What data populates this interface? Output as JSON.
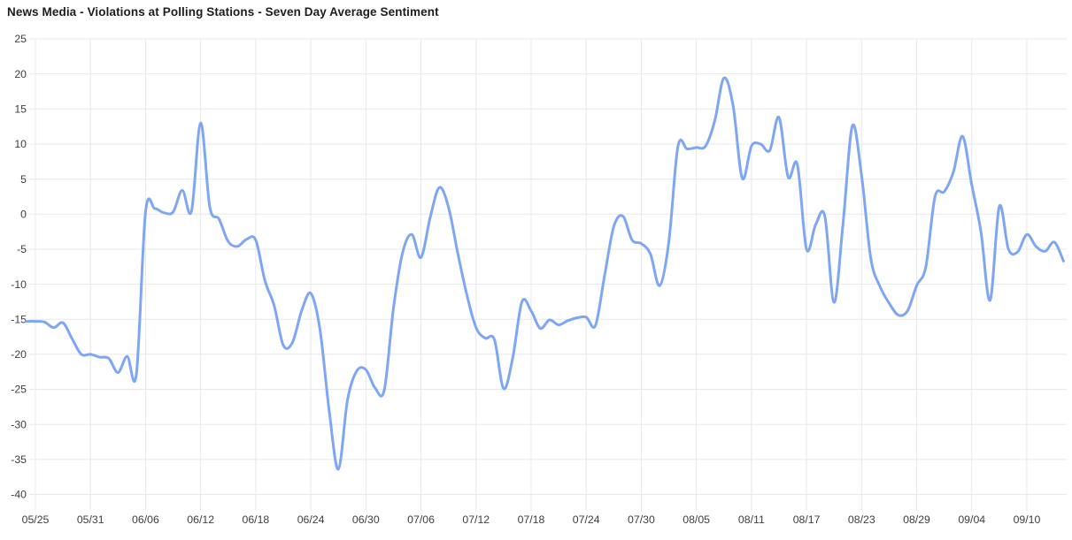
{
  "chart_data": {
    "type": "line",
    "title": "News Media - Violations at Polling Stations - Seven Day Average Sentiment",
    "series_name": "Seven Day Average Sentiment",
    "x": [
      "05/24",
      "05/25",
      "05/26",
      "05/27",
      "05/28",
      "05/29",
      "05/30",
      "05/31",
      "06/01",
      "06/02",
      "06/03",
      "06/04",
      "06/05",
      "06/06",
      "06/07",
      "06/08",
      "06/09",
      "06/10",
      "06/11",
      "06/12",
      "06/13",
      "06/14",
      "06/15",
      "06/16",
      "06/17",
      "06/18",
      "06/19",
      "06/20",
      "06/21",
      "06/22",
      "06/23",
      "06/24",
      "06/25",
      "06/26",
      "06/27",
      "06/28",
      "06/29",
      "06/30",
      "07/01",
      "07/02",
      "07/03",
      "07/04",
      "07/05",
      "07/06",
      "07/07",
      "07/08",
      "07/09",
      "07/10",
      "07/11",
      "07/12",
      "07/13",
      "07/14",
      "07/15",
      "07/16",
      "07/17",
      "07/18",
      "07/19",
      "07/20",
      "07/21",
      "07/22",
      "07/23",
      "07/24",
      "07/25",
      "07/26",
      "07/27",
      "07/28",
      "07/29",
      "07/30",
      "07/31",
      "08/01",
      "08/02",
      "08/03",
      "08/04",
      "08/05",
      "08/06",
      "08/07",
      "08/08",
      "08/09",
      "08/10",
      "08/11",
      "08/12",
      "08/13",
      "08/14",
      "08/15",
      "08/16",
      "08/17",
      "08/18",
      "08/19",
      "08/20",
      "08/21",
      "08/22",
      "08/23",
      "08/24",
      "08/25",
      "08/26",
      "08/27",
      "08/28",
      "08/29",
      "08/30",
      "08/31",
      "09/01",
      "09/02",
      "09/03",
      "09/04",
      "09/05",
      "09/06",
      "09/07",
      "09/08",
      "09/09",
      "09/10",
      "09/11",
      "09/12",
      "09/13",
      "09/14"
    ],
    "values": [
      -15.3,
      -15.3,
      -15.4,
      -16.2,
      -15.5,
      -17.8,
      -20.0,
      -20.0,
      -20.4,
      -20.6,
      -22.6,
      -20.3,
      -22.8,
      0.3,
      0.8,
      0.2,
      0.3,
      3.4,
      0.4,
      13.0,
      1.0,
      -0.7,
      -3.9,
      -4.6,
      -3.6,
      -3.7,
      -9.5,
      -13.0,
      -18.7,
      -18.3,
      -13.8,
      -11.3,
      -16.5,
      -28.0,
      -36.4,
      -26.5,
      -22.4,
      -22.2,
      -24.8,
      -25.1,
      -13.5,
      -5.5,
      -2.9,
      -6.2,
      -0.5,
      3.8,
      1.0,
      -5.5,
      -11.5,
      -16.2,
      -17.7,
      -17.9,
      -24.9,
      -20.5,
      -12.5,
      -13.8,
      -16.3,
      -15.1,
      -15.8,
      -15.2,
      -14.8,
      -14.7,
      -15.9,
      -8.8,
      -1.8,
      -0.3,
      -3.7,
      -4.2,
      -5.7,
      -10.2,
      -4.0,
      9.7,
      9.3,
      9.5,
      9.7,
      13.3,
      19.4,
      15.5,
      5.1,
      9.7,
      10.0,
      9.1,
      13.8,
      5.3,
      7.1,
      -5.0,
      -1.5,
      -0.3,
      -12.6,
      -1.0,
      12.6,
      5.5,
      -6.3,
      -10.3,
      -12.7,
      -14.4,
      -13.8,
      -10.2,
      -7.5,
      2.5,
      3.2,
      6.0,
      11.1,
      4.2,
      -2.5,
      -12.3,
      1.1,
      -5.0,
      -5.4,
      -2.9,
      -4.6,
      -5.3,
      -4.0,
      -6.7
    ],
    "x_tick_labels": [
      "05/25",
      "05/31",
      "06/06",
      "06/12",
      "06/18",
      "06/24",
      "06/30",
      "07/06",
      "07/12",
      "07/18",
      "07/24",
      "07/30",
      "08/05",
      "08/11",
      "08/17",
      "08/23",
      "08/29",
      "09/04",
      "09/10"
    ],
    "x_tick_start_index": 1,
    "x_tick_step": 6,
    "y_ticks": [
      25,
      20,
      15,
      10,
      5,
      0,
      -5,
      -10,
      -15,
      -20,
      -25,
      -30,
      -35,
      -40
    ],
    "ylim": [
      -40,
      25
    ],
    "grid": true,
    "legend": "none",
    "line_color": "#7da6f5",
    "grid_color": "#e8e8e8",
    "label_color": "#3c4043",
    "title_color": "#1d1d1f",
    "background": "#ffffff"
  }
}
